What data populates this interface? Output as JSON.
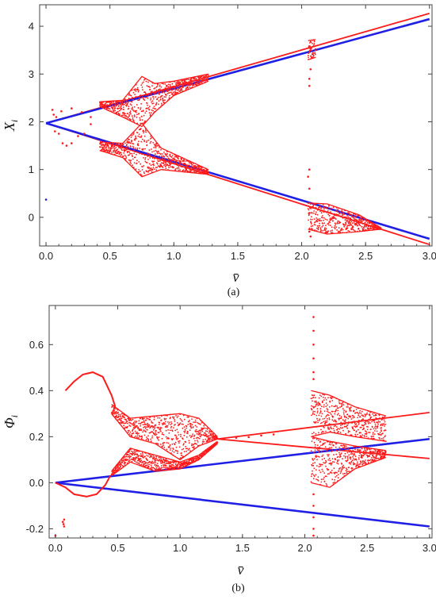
{
  "colors": {
    "red": "#ff1a1a",
    "blue": "#1f1fe6",
    "frame": "#444444"
  },
  "chart_data": [
    {
      "type": "scatter",
      "panel": "(a)",
      "xlabel": "v̄",
      "ylabel_main": "X",
      "ylabel_sub": "i",
      "xlim": [
        -0.05,
        3.02
      ],
      "ylim": [
        -0.6,
        4.45
      ],
      "x_ticks": [
        0.0,
        0.5,
        1.0,
        1.5,
        2.0,
        2.5,
        3.0
      ],
      "y_ticks": [
        0,
        1,
        2,
        3,
        4
      ],
      "grid": false,
      "series": [
        {
          "color": "red",
          "kind": "lines",
          "lines": [
            {
              "x": [
                0.0,
                3.0
              ],
              "y": [
                1.97,
                4.27
              ]
            },
            {
              "x": [
                0.0,
                3.0
              ],
              "y": [
                1.97,
                -0.57
              ]
            }
          ]
        },
        {
          "color": "blue",
          "kind": "lines",
          "lines": [
            {
              "x": [
                0.0,
                3.0
              ],
              "y": [
                1.97,
                4.15
              ]
            },
            {
              "x": [
                0.0,
                3.0
              ],
              "y": [
                1.97,
                -0.45
              ]
            }
          ]
        },
        {
          "color": "red",
          "kind": "bifurcation",
          "bands": [
            {
              "x": [
                0.42,
                1.27
              ],
              "upper": [
                [
                  0.42,
                  2.42
                ],
                [
                  0.6,
                  2.45
                ],
                [
                  0.75,
                  2.95
                ],
                [
                  0.85,
                  2.8
                ],
                [
                  1.0,
                  2.85
                ],
                [
                  1.27,
                  3.0
                ]
              ],
              "lower": [
                [
                  0.42,
                  2.32
                ],
                [
                  0.6,
                  2.1
                ],
                [
                  0.75,
                  1.9
                ],
                [
                  0.85,
                  2.2
                ],
                [
                  1.0,
                  2.55
                ],
                [
                  1.27,
                  2.85
                ]
              ]
            },
            {
              "x": [
                0.42,
                1.27
              ],
              "upper": [
                [
                  0.42,
                  1.58
                ],
                [
                  0.6,
                  1.55
                ],
                [
                  0.75,
                  1.97
                ],
                [
                  0.9,
                  1.45
                ],
                [
                  1.27,
                  1.0
                ]
              ],
              "lower": [
                [
                  0.42,
                  1.4
                ],
                [
                  0.6,
                  1.25
                ],
                [
                  0.75,
                  0.85
                ],
                [
                  0.9,
                  1.0
                ],
                [
                  1.27,
                  0.9
                ]
              ]
            },
            {
              "x": [
                2.05,
                2.11
              ],
              "upper": [
                [
                  2.05,
                  3.7
                ],
                [
                  2.11,
                  3.72
                ]
              ],
              "lower": [
                [
                  2.05,
                  3.3
                ],
                [
                  2.11,
                  3.35
                ]
              ]
            },
            {
              "x": [
                2.05,
                2.62
              ],
              "upper": [
                [
                  2.05,
                  0.3
                ],
                [
                  2.2,
                  0.28
                ],
                [
                  2.45,
                  0.05
                ],
                [
                  2.62,
                  -0.22
                ]
              ],
              "lower": [
                [
                  2.05,
                  -0.25
                ],
                [
                  2.2,
                  -0.35
                ],
                [
                  2.45,
                  -0.3
                ],
                [
                  2.62,
                  -0.25
                ]
              ]
            }
          ],
          "points": [
            [
              0.0,
              0.37
            ],
            [
              2.06,
              2.75
            ],
            [
              2.06,
              2.9
            ],
            [
              2.07,
              3.1
            ],
            [
              2.06,
              1.0
            ],
            [
              2.05,
              0.85
            ],
            [
              2.06,
              0.6
            ],
            [
              2.07,
              -0.4
            ],
            [
              2.06,
              -0.3
            ],
            [
              0.05,
              2.25
            ],
            [
              0.08,
              2.1
            ],
            [
              0.1,
              1.75
            ],
            [
              0.13,
              1.55
            ],
            [
              0.16,
              1.5
            ],
            [
              0.2,
              1.55
            ],
            [
              0.25,
              1.7
            ],
            [
              0.3,
              1.75
            ],
            [
              0.35,
              1.95
            ],
            [
              0.07,
              1.8
            ],
            [
              0.06,
              2.15
            ],
            [
              0.12,
              2.22
            ],
            [
              0.2,
              2.28
            ],
            [
              0.28,
              2.2
            ],
            [
              0.35,
              2.1
            ]
          ]
        }
      ]
    },
    {
      "type": "scatter",
      "panel": "(b)",
      "xlabel": "v̄",
      "ylabel_main": "Φ",
      "ylabel_sub": "i",
      "xlim": [
        -0.05,
        3.02
      ],
      "ylim": [
        -0.24,
        0.77
      ],
      "x_ticks": [
        0.0,
        0.5,
        1.0,
        1.5,
        2.0,
        2.5,
        3.0
      ],
      "y_ticks": [
        -0.2,
        0.0,
        0.2,
        0.4,
        0.6
      ],
      "grid": false,
      "series": [
        {
          "color": "red",
          "kind": "lines",
          "lines": [
            {
              "x": [
                1.3,
                3.0
              ],
              "y": [
                0.19,
                0.305
              ]
            },
            {
              "x": [
                1.3,
                3.0
              ],
              "y": [
                0.19,
                0.105
              ]
            }
          ]
        },
        {
          "color": "blue",
          "kind": "lines",
          "lines": [
            {
              "x": [
                0.0,
                3.0
              ],
              "y": [
                0.0,
                0.19
              ]
            },
            {
              "x": [
                0.0,
                3.0
              ],
              "y": [
                0.0,
                -0.19
              ]
            }
          ]
        },
        {
          "color": "red",
          "kind": "bifurcation",
          "curves": [
            {
              "x": [
                0.08,
                0.15,
                0.22,
                0.3,
                0.38,
                0.45,
                0.48
              ],
              "y": [
                0.4,
                0.44,
                0.47,
                0.48,
                0.46,
                0.38,
                0.33
              ]
            },
            {
              "x": [
                0.0,
                0.08,
                0.15,
                0.25,
                0.33,
                0.4,
                0.44
              ],
              "y": [
                0.0,
                -0.02,
                -0.05,
                -0.06,
                -0.05,
                -0.01,
                0.03
              ]
            }
          ],
          "bands": [
            {
              "x": [
                0.45,
                1.3
              ],
              "upper": [
                [
                  0.45,
                  0.34
                ],
                [
                  0.6,
                  0.28
                ],
                [
                  0.8,
                  0.29
                ],
                [
                  1.0,
                  0.3
                ],
                [
                  1.15,
                  0.28
                ],
                [
                  1.3,
                  0.2
                ]
              ],
              "lower": [
                [
                  0.45,
                  0.3
                ],
                [
                  0.6,
                  0.2
                ],
                [
                  0.8,
                  0.17
                ],
                [
                  1.0,
                  0.1
                ],
                [
                  1.15,
                  0.16
                ],
                [
                  1.3,
                  0.19
                ]
              ]
            },
            {
              "x": [
                0.45,
                1.3
              ],
              "upper": [
                [
                  0.45,
                  0.05
                ],
                [
                  0.6,
                  0.15
                ],
                [
                  0.8,
                  0.12
                ],
                [
                  1.0,
                  0.09
                ],
                [
                  1.15,
                  0.12
                ],
                [
                  1.3,
                  0.18
                ]
              ],
              "lower": [
                [
                  0.45,
                  0.03
                ],
                [
                  0.6,
                  0.09
                ],
                [
                  0.8,
                  0.05
                ],
                [
                  1.0,
                  0.06
                ],
                [
                  1.15,
                  0.1
                ],
                [
                  1.3,
                  0.17
                ]
              ]
            },
            {
              "x": [
                2.05,
                2.65
              ],
              "upper": [
                [
                  2.05,
                  0.4
                ],
                [
                  2.2,
                  0.38
                ],
                [
                  2.4,
                  0.33
                ],
                [
                  2.65,
                  0.29
                ]
              ],
              "lower": [
                [
                  2.05,
                  0.2
                ],
                [
                  2.2,
                  0.22
                ],
                [
                  2.4,
                  0.2
                ],
                [
                  2.65,
                  0.18
                ]
              ]
            },
            {
              "x": [
                2.05,
                2.65
              ],
              "upper": [
                [
                  2.05,
                  0.2
                ],
                [
                  2.2,
                  0.18
                ],
                [
                  2.4,
                  0.16
                ],
                [
                  2.65,
                  0.14
                ]
              ],
              "lower": [
                [
                  2.05,
                  0.0
                ],
                [
                  2.2,
                  -0.02
                ],
                [
                  2.4,
                  0.06
                ],
                [
                  2.65,
                  0.11
                ]
              ]
            }
          ],
          "points": [
            [
              0.06,
              -0.17
            ],
            [
              0.065,
              -0.18
            ],
            [
              0.07,
              -0.19
            ],
            [
              0.07,
              -0.16
            ],
            [
              0.0,
              -0.23
            ],
            [
              2.07,
              0.72
            ],
            [
              2.07,
              0.66
            ],
            [
              2.07,
              0.6
            ],
            [
              2.07,
              0.54
            ],
            [
              2.07,
              0.48
            ],
            [
              2.07,
              0.45
            ],
            [
              2.07,
              -0.05
            ],
            [
              2.07,
              -0.1
            ],
            [
              2.07,
              -0.15
            ],
            [
              2.07,
              -0.2
            ],
            [
              2.07,
              -0.23
            ],
            [
              1.35,
              0.19
            ],
            [
              1.45,
              0.195
            ],
            [
              1.55,
              0.198
            ],
            [
              1.65,
              0.205
            ],
            [
              1.75,
              0.21
            ]
          ]
        }
      ]
    }
  ]
}
